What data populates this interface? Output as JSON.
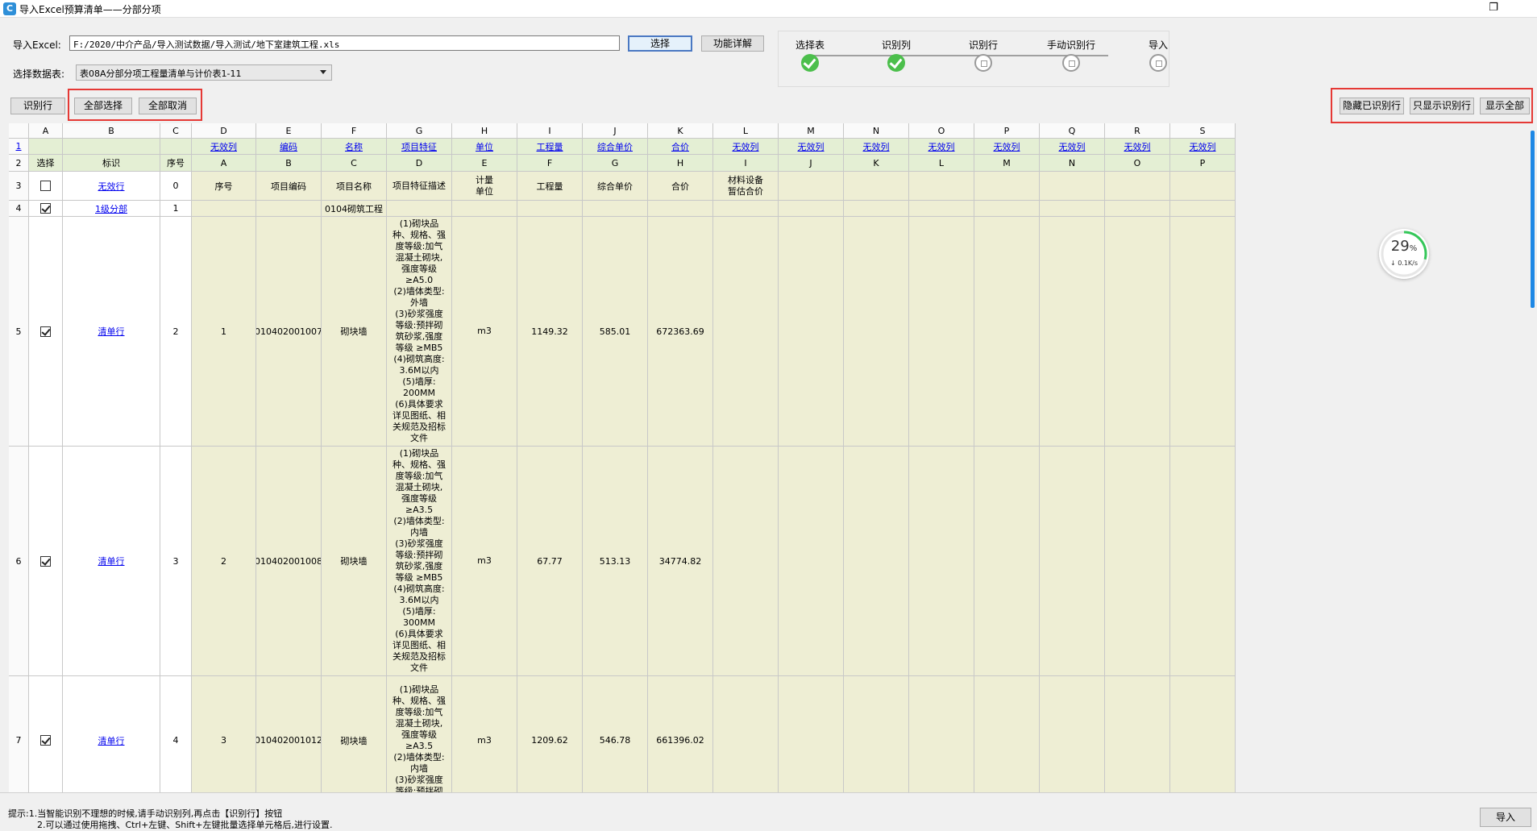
{
  "window": {
    "title": "导入Excel预算清单——分部分项",
    "app_icon": "C"
  },
  "form": {
    "excel_label": "导入Excel:",
    "excel_path": "F:/2020/中介产品/导入测试数据/导入测试/地下室建筑工程.xls",
    "select_button": "选择",
    "detail_button": "功能详解",
    "sheet_label": "选择数据表:",
    "sheet_value": "表08A分部分项工程量清单与计价表1-11"
  },
  "steps": [
    {
      "label": "选择表",
      "state": "done"
    },
    {
      "label": "识别列",
      "state": "done"
    },
    {
      "label": "识别行",
      "state": "pending"
    },
    {
      "label": "手动识别行",
      "state": "pending"
    },
    {
      "label": "导入",
      "state": "pending"
    }
  ],
  "toolbar": {
    "identify_rows": "识别行",
    "select_all": "全部选择",
    "deselect_all": "全部取消",
    "hide_identified": "隐藏已识别行",
    "show_only_identified": "只显示识别行",
    "show_all": "显示全部"
  },
  "grid": {
    "col_letters": [
      "A",
      "B",
      "C",
      "D",
      "E",
      "F",
      "G",
      "H",
      "I",
      "J",
      "K",
      "L",
      "M",
      "N",
      "O",
      "P",
      "Q",
      "R",
      "S"
    ],
    "row1": [
      "",
      "",
      "",
      "无效列",
      "编码",
      "名称",
      "项目特征",
      "单位",
      "工程量",
      "综合单价",
      "合价",
      "无效列",
      "无效列",
      "无效列",
      "无效列",
      "无效列",
      "无效列",
      "无效列",
      "无效列"
    ],
    "row2": [
      "选择",
      "标识",
      "序号",
      "A",
      "B",
      "C",
      "D",
      "E",
      "F",
      "G",
      "H",
      "I",
      "J",
      "K",
      "L",
      "M",
      "N",
      "O",
      "P"
    ],
    "row3": [
      "",
      "无效行",
      "0",
      "序号",
      "项目编码",
      "项目名称",
      "项目特征描述",
      "计量\n单位",
      "工程量",
      "综合单价",
      "合价",
      "材料设备\n暂估合价",
      "",
      "",
      "",
      "",
      "",
      "",
      ""
    ],
    "row4": [
      "",
      "1级分部",
      "1",
      "",
      "",
      "0104砌筑工程",
      "",
      "",
      "",
      "",
      "",
      "",
      "",
      "",
      "",
      "",
      "",
      "",
      ""
    ],
    "row5": [
      "",
      "清单行",
      "2",
      "1",
      "010402001007",
      "砌块墙",
      "(1)砌块品\n种、规格、强\n度等级:加气\n混凝土砌块,\n强度等级\n≥A5.0\n(2)墙体类型:\n外墙\n(3)砂浆强度\n等级:预拌砌\n筑砂浆,强度\n等级 ≥MB5\n(4)砌筑高度:\n3.6M以内\n(5)墙厚:\n200MM\n(6)具体要求\n详见图纸、相\n关规范及招标\n文件",
      "m3",
      "1149.32",
      "585.01",
      "672363.69",
      "",
      "",
      "",
      "",
      "",
      "",
      "",
      ""
    ],
    "row6": [
      "",
      "清单行",
      "3",
      "2",
      "010402001008",
      "砌块墙",
      "(1)砌块品\n种、规格、强\n度等级:加气\n混凝土砌块,\n强度等级\n≥A3.5\n(2)墙体类型:\n内墙\n(3)砂浆强度\n等级:预拌砌\n筑砂浆,强度\n等级 ≥MB5\n(4)砌筑高度:\n3.6M以内\n(5)墙厚:\n300MM\n(6)具体要求\n详见图纸、相\n关规范及招标\n文件",
      "m3",
      "67.77",
      "513.13",
      "34774.82",
      "",
      "",
      "",
      "",
      "",
      "",
      "",
      ""
    ],
    "row7": [
      "",
      "清单行",
      "4",
      "3",
      "010402001012",
      "砌块墙",
      "(1)砌块品\n种、规格、强\n度等级:加气\n混凝土砌块,\n强度等级\n≥A3.5\n(2)墙体类型:\n内墙\n(3)砂浆强度\n等级:预拌砌",
      "m3",
      "1209.62",
      "546.78",
      "661396.02",
      "",
      "",
      "",
      "",
      "",
      "",
      "",
      ""
    ],
    "row_numbers": [
      "1",
      "2",
      "3",
      "4",
      "5",
      "6",
      "7"
    ],
    "checked": [
      false,
      true,
      true,
      true,
      true
    ]
  },
  "gauge": {
    "percent": "29",
    "unit": "%",
    "speed": "↓ 0.1K/s"
  },
  "footer": {
    "tip1": "提示:1.当智能识别不理想的时候,请手动识别列,再点击【识别行】按钮",
    "tip2": "2.可以通过使用拖拽、Ctrl+左键、Shift+左键批量选择单元格后,进行设置.",
    "import_button": "导入"
  },
  "colors": {
    "accent": "#2e8fd8",
    "done": "#4cbf4c",
    "highlight_box": "#e53935",
    "data_bg": "#eeeed4",
    "header_bg": "#e4efd4",
    "link": "#0000ee"
  }
}
